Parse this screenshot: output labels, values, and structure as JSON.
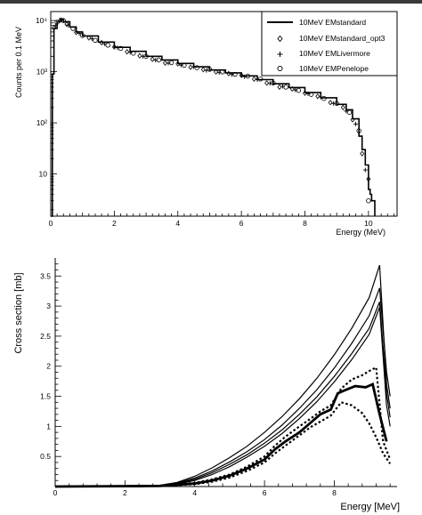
{
  "chart_data": [
    {
      "type": "line",
      "xlabel": "Energy (MeV)",
      "ylabel": "Counts per 0.1 MeV",
      "y_scale": "log",
      "xlim": [
        0,
        10.9
      ],
      "ylim": [
        1.5,
        15000
      ],
      "x_ticks": [
        0,
        2,
        4,
        6,
        8,
        10
      ],
      "y_ticks": [
        {
          "value": 10,
          "label": "10"
        },
        {
          "value": 100,
          "label": "10²"
        },
        {
          "value": 1000,
          "label": "10³"
        },
        {
          "value": 10000,
          "label": "10⁴"
        }
      ],
      "legend_position": "top-right",
      "series": [
        {
          "name": "10MeV EMstandard",
          "marker": "line",
          "x": [
            0.0,
            0.05,
            0.1,
            0.2,
            0.3,
            0.4,
            0.6,
            0.8,
            1.0,
            1.5,
            2.0,
            2.5,
            3.0,
            3.5,
            4.0,
            4.5,
            5.0,
            5.5,
            6.0,
            6.5,
            7.0,
            7.5,
            8.0,
            8.5,
            9.0,
            9.3,
            9.5,
            9.7,
            9.8,
            9.9,
            10.0,
            10.05,
            10.1,
            10.2
          ],
          "y": [
            1.5,
            900,
            7000,
            9500,
            10500,
            9500,
            7500,
            6000,
            5000,
            3800,
            3000,
            2500,
            2000,
            1700,
            1450,
            1250,
            1080,
            950,
            830,
            700,
            580,
            490,
            390,
            310,
            230,
            180,
            120,
            55,
            30,
            15,
            5,
            4,
            3,
            1.5
          ]
        },
        {
          "name": "10MeV EMstandard_opt3",
          "marker": "diamond",
          "x": [
            0.1,
            0.3,
            0.5,
            0.8,
            1.2,
            1.6,
            2.0,
            2.4,
            2.8,
            3.2,
            3.6,
            4.0,
            4.4,
            4.8,
            5.2,
            5.6,
            6.0,
            6.4,
            6.8,
            7.2,
            7.6,
            8.0,
            8.4,
            8.8,
            9.2,
            9.5,
            9.8,
            10.0
          ],
          "y": [
            7200,
            10200,
            8500,
            5900,
            4600,
            3700,
            3050,
            2450,
            2050,
            1750,
            1480,
            1430,
            1220,
            1100,
            990,
            920,
            850,
            720,
            600,
            500,
            460,
            380,
            330,
            250,
            200,
            115,
            25,
            8
          ]
        },
        {
          "name": "10MeV EMLivermore",
          "marker": "plus",
          "x": [
            0.15,
            0.35,
            0.55,
            0.9,
            1.3,
            1.7,
            2.1,
            2.5,
            2.9,
            3.3,
            3.7,
            4.1,
            4.5,
            4.9,
            5.3,
            5.7,
            6.1,
            6.5,
            6.9,
            7.3,
            7.7,
            8.1,
            8.5,
            8.9,
            9.3,
            9.6,
            9.9
          ],
          "y": [
            8000,
            10300,
            8200,
            5600,
            4400,
            3500,
            2950,
            2400,
            2000,
            1680,
            1470,
            1350,
            1250,
            1060,
            960,
            880,
            800,
            700,
            590,
            520,
            440,
            370,
            320,
            240,
            170,
            95,
            12
          ]
        },
        {
          "name": "10MeV EMPenelope",
          "marker": "circle",
          "x": [
            0.2,
            0.4,
            0.7,
            1.0,
            1.4,
            1.8,
            2.2,
            2.6,
            3.0,
            3.4,
            3.8,
            4.2,
            4.6,
            5.0,
            5.4,
            5.8,
            6.2,
            6.6,
            7.0,
            7.4,
            7.8,
            8.2,
            8.6,
            9.0,
            9.4,
            9.7,
            10.0
          ],
          "y": [
            9300,
            10000,
            7000,
            5100,
            4100,
            3300,
            2850,
            2300,
            2000,
            1700,
            1500,
            1330,
            1200,
            1110,
            990,
            890,
            820,
            720,
            600,
            500,
            430,
            360,
            300,
            240,
            160,
            70,
            3
          ]
        }
      ]
    },
    {
      "type": "line",
      "xlabel": "Energy [MeV]",
      "ylabel": "Cross section [mb]",
      "xlim": [
        0,
        9.8
      ],
      "ylim": [
        0,
        3.8
      ],
      "x_ticks": [
        0,
        2,
        4,
        6,
        8
      ],
      "y_ticks": [
        0,
        0.5,
        1,
        1.5,
        2,
        2.5,
        3,
        3.5
      ],
      "series": [
        {
          "style": "thin-solid",
          "x": [
            0,
            2.5,
            3,
            3.5,
            4,
            4.5,
            5,
            5.5,
            6,
            6.5,
            7,
            7.5,
            8,
            8.5,
            9,
            9.3,
            9.5,
            9.6
          ],
          "y": [
            0,
            0,
            0.02,
            0.07,
            0.17,
            0.31,
            0.48,
            0.67,
            0.9,
            1.16,
            1.46,
            1.8,
            2.19,
            2.63,
            3.14,
            3.68,
            1.7,
            1.3
          ]
        },
        {
          "style": "thin-solid",
          "x": [
            0,
            2.5,
            3,
            3.5,
            4,
            4.5,
            5,
            5.5,
            6,
            6.5,
            7,
            7.5,
            8,
            8.5,
            9,
            9.3,
            9.5,
            9.6
          ],
          "y": [
            0,
            0,
            0.015,
            0.06,
            0.14,
            0.26,
            0.41,
            0.58,
            0.78,
            1.02,
            1.3,
            1.61,
            1.97,
            2.38,
            2.84,
            3.3,
            1.9,
            1.5
          ]
        },
        {
          "style": "thin-solid",
          "x": [
            0,
            2.5,
            3,
            3.5,
            4,
            4.5,
            5,
            5.5,
            6,
            6.5,
            7,
            7.5,
            8,
            8.5,
            9,
            9.3,
            9.5,
            9.6
          ],
          "y": [
            0,
            0,
            0.01,
            0.05,
            0.12,
            0.23,
            0.37,
            0.53,
            0.72,
            0.94,
            1.2,
            1.49,
            1.83,
            2.21,
            2.63,
            3.07,
            1.55,
            1.15
          ]
        },
        {
          "style": "thin-solid",
          "x": [
            0,
            2.5,
            3,
            3.5,
            4,
            4.5,
            5,
            5.5,
            6,
            6.5,
            7,
            7.5,
            8,
            8.5,
            9,
            9.3,
            9.5,
            9.6
          ],
          "y": [
            0,
            0,
            0.01,
            0.04,
            0.1,
            0.2,
            0.33,
            0.49,
            0.67,
            0.88,
            1.13,
            1.41,
            1.74,
            2.11,
            2.53,
            2.98,
            1.35,
            1.0
          ]
        },
        {
          "style": "thick-solid",
          "x": [
            0,
            3,
            4,
            4.5,
            5,
            5.5,
            6,
            6.3,
            6.6,
            7,
            7.3,
            7.6,
            7.9,
            8.1,
            8.3,
            8.6,
            8.9,
            9.1,
            9.3,
            9.5
          ],
          "y": [
            0,
            0.01,
            0.05,
            0.1,
            0.18,
            0.3,
            0.45,
            0.62,
            0.75,
            0.9,
            1.05,
            1.2,
            1.28,
            1.55,
            1.6,
            1.67,
            1.65,
            1.7,
            1.2,
            0.75
          ]
        },
        {
          "style": "thick-dotted",
          "x": [
            0,
            3,
            4,
            4.5,
            5,
            5.5,
            6,
            6.3,
            6.6,
            7,
            7.3,
            7.6,
            7.9,
            8.2,
            8.5,
            8.8,
            9.0,
            9.2,
            9.4,
            9.6
          ],
          "y": [
            0,
            0.01,
            0.06,
            0.12,
            0.2,
            0.33,
            0.5,
            0.68,
            0.83,
            1.0,
            1.12,
            1.25,
            1.35,
            1.63,
            1.78,
            1.85,
            1.92,
            1.98,
            0.75,
            0.45
          ]
        },
        {
          "style": "thick-dotted",
          "x": [
            0,
            3,
            4,
            4.5,
            5,
            5.5,
            6,
            6.3,
            6.6,
            7,
            7.3,
            7.6,
            7.9,
            8.2,
            8.5,
            8.8,
            9.0,
            9.2,
            9.4,
            9.6
          ],
          "y": [
            0,
            0.01,
            0.04,
            0.08,
            0.15,
            0.26,
            0.4,
            0.55,
            0.68,
            0.85,
            0.98,
            1.08,
            1.18,
            1.4,
            1.35,
            1.22,
            1.05,
            0.82,
            0.55,
            0.38
          ]
        }
      ]
    }
  ]
}
